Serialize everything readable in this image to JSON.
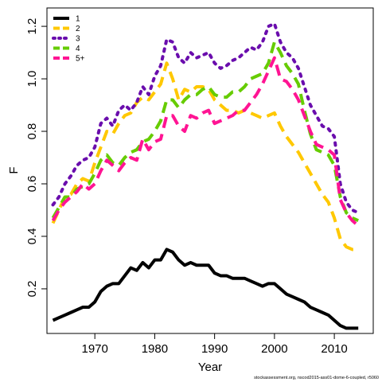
{
  "chart_data": {
    "type": "line",
    "xlabel": "Year",
    "ylabel": "F",
    "xlim": [
      1962,
      2016.5
    ],
    "ylim": [
      0.03,
      1.27
    ],
    "x_ticks": [
      1970,
      1980,
      1990,
      2000,
      2010
    ],
    "x_tick_labels": [
      "1970",
      "1980",
      "1990",
      "2000",
      "2010"
    ],
    "y_ticks": [
      0.2,
      0.4,
      0.6,
      0.8,
      1.0,
      1.2
    ],
    "y_tick_labels": [
      "0.2",
      "0.4",
      "0.6",
      "0.8",
      "1.0",
      "1.2"
    ],
    "legend_position": "top-left",
    "grid": false,
    "credit": "stockassessment.org, nscod2015-ass01-dome-6-coupled, r5060",
    "x": [
      1963,
      1964,
      1965,
      1966,
      1967,
      1968,
      1969,
      1970,
      1971,
      1972,
      1973,
      1974,
      1975,
      1976,
      1977,
      1978,
      1979,
      1980,
      1981,
      1982,
      1983,
      1984,
      1985,
      1986,
      1987,
      1988,
      1989,
      1990,
      1991,
      1992,
      1993,
      1994,
      1995,
      1996,
      1997,
      1998,
      1999,
      2000,
      2001,
      2002,
      2003,
      2004,
      2005,
      2006,
      2007,
      2008,
      2009,
      2010,
      2011,
      2012,
      2013,
      2014
    ],
    "series": [
      {
        "name": "1",
        "color": "#000000",
        "dash": "solid",
        "values": [
          0.08,
          0.09,
          0.1,
          0.11,
          0.12,
          0.13,
          0.13,
          0.15,
          0.19,
          0.21,
          0.22,
          0.22,
          0.25,
          0.28,
          0.27,
          0.3,
          0.28,
          0.31,
          0.31,
          0.35,
          0.34,
          0.31,
          0.29,
          0.3,
          0.29,
          0.29,
          0.29,
          0.26,
          0.25,
          0.25,
          0.24,
          0.24,
          0.24,
          0.23,
          0.22,
          0.21,
          0.22,
          0.22,
          0.2,
          0.18,
          0.17,
          0.16,
          0.15,
          0.13,
          0.12,
          0.11,
          0.1,
          0.08,
          0.06,
          0.05,
          0.05,
          0.05
        ]
      },
      {
        "name": "2",
        "color": "#FFC800",
        "dash": "dashed",
        "values": [
          0.45,
          0.5,
          0.55,
          0.56,
          0.6,
          0.62,
          0.61,
          0.68,
          0.74,
          0.8,
          0.79,
          0.83,
          0.86,
          0.87,
          0.91,
          0.93,
          0.92,
          0.95,
          0.98,
          1.06,
          1.0,
          0.92,
          0.96,
          0.95,
          0.97,
          0.97,
          0.96,
          0.92,
          0.9,
          0.88,
          0.88,
          0.87,
          0.88,
          0.87,
          0.86,
          0.85,
          0.86,
          0.87,
          0.82,
          0.78,
          0.75,
          0.72,
          0.68,
          0.64,
          0.6,
          0.56,
          0.53,
          0.47,
          0.39,
          0.36,
          0.35,
          0.35
        ]
      },
      {
        "name": "3",
        "color": "#6A0DAD",
        "dash": "dotted",
        "values": [
          0.52,
          0.55,
          0.6,
          0.63,
          0.67,
          0.69,
          0.7,
          0.74,
          0.83,
          0.85,
          0.82,
          0.88,
          0.9,
          0.88,
          0.91,
          0.97,
          0.94,
          1.01,
          1.05,
          1.15,
          1.14,
          1.08,
          1.06,
          1.1,
          1.08,
          1.09,
          1.1,
          1.06,
          1.04,
          1.05,
          1.07,
          1.08,
          1.1,
          1.12,
          1.11,
          1.14,
          1.2,
          1.21,
          1.14,
          1.1,
          1.08,
          1.04,
          0.97,
          0.9,
          0.86,
          0.82,
          0.81,
          0.78,
          0.6,
          0.53,
          0.5,
          0.49
        ]
      },
      {
        "name": "4",
        "color": "#66CC00",
        "dash": "dashed",
        "values": [
          0.47,
          0.51,
          0.55,
          0.55,
          0.58,
          0.59,
          0.6,
          0.64,
          0.69,
          0.71,
          0.68,
          0.67,
          0.7,
          0.72,
          0.73,
          0.76,
          0.77,
          0.8,
          0.84,
          0.92,
          0.92,
          0.89,
          0.92,
          0.94,
          0.94,
          0.96,
          0.97,
          0.94,
          0.93,
          0.93,
          0.95,
          0.95,
          0.97,
          1.0,
          1.01,
          1.02,
          1.06,
          1.14,
          1.1,
          1.05,
          1.02,
          0.98,
          0.88,
          0.79,
          0.73,
          0.72,
          0.71,
          0.67,
          0.55,
          0.49,
          0.47,
          0.46
        ]
      },
      {
        "name": "5+",
        "color": "#FF1493",
        "dash": "dashed",
        "values": [
          0.46,
          0.5,
          0.53,
          0.55,
          0.57,
          0.6,
          0.58,
          0.6,
          0.65,
          0.69,
          0.67,
          0.65,
          0.68,
          0.7,
          0.69,
          0.77,
          0.73,
          0.76,
          0.77,
          0.86,
          0.86,
          0.82,
          0.8,
          0.86,
          0.85,
          0.87,
          0.88,
          0.83,
          0.84,
          0.85,
          0.86,
          0.88,
          0.88,
          0.91,
          0.94,
          0.98,
          1.03,
          1.08,
          1.0,
          0.99,
          0.96,
          0.92,
          0.86,
          0.8,
          0.75,
          0.74,
          0.73,
          0.71,
          0.54,
          0.49,
          0.46,
          0.44
        ]
      }
    ]
  }
}
